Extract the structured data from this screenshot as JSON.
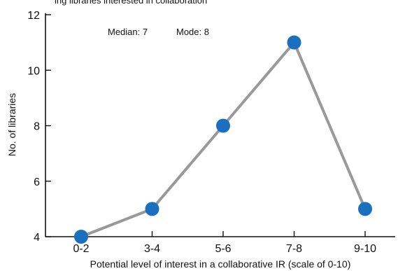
{
  "header_text": "ing libraries interested in collaboration",
  "chart_data": {
    "type": "line",
    "categories": [
      "0-2",
      "3-4",
      "5-6",
      "7-8",
      "9-10"
    ],
    "series": [
      {
        "values": [
          4,
          5,
          8,
          11,
          5
        ]
      }
    ],
    "xlabel": "Potential level of interest in a collaborative IR (scale of 0-10)",
    "ylabel": "No. of libraries",
    "ylim": [
      4,
      12
    ],
    "yticks": [
      4,
      6,
      8,
      10,
      12
    ],
    "annotation": {
      "median": "Median: 7",
      "mode": "Mode: 8"
    },
    "grid": false,
    "line_color": "#999999",
    "marker_color": "#1a6fbf"
  }
}
